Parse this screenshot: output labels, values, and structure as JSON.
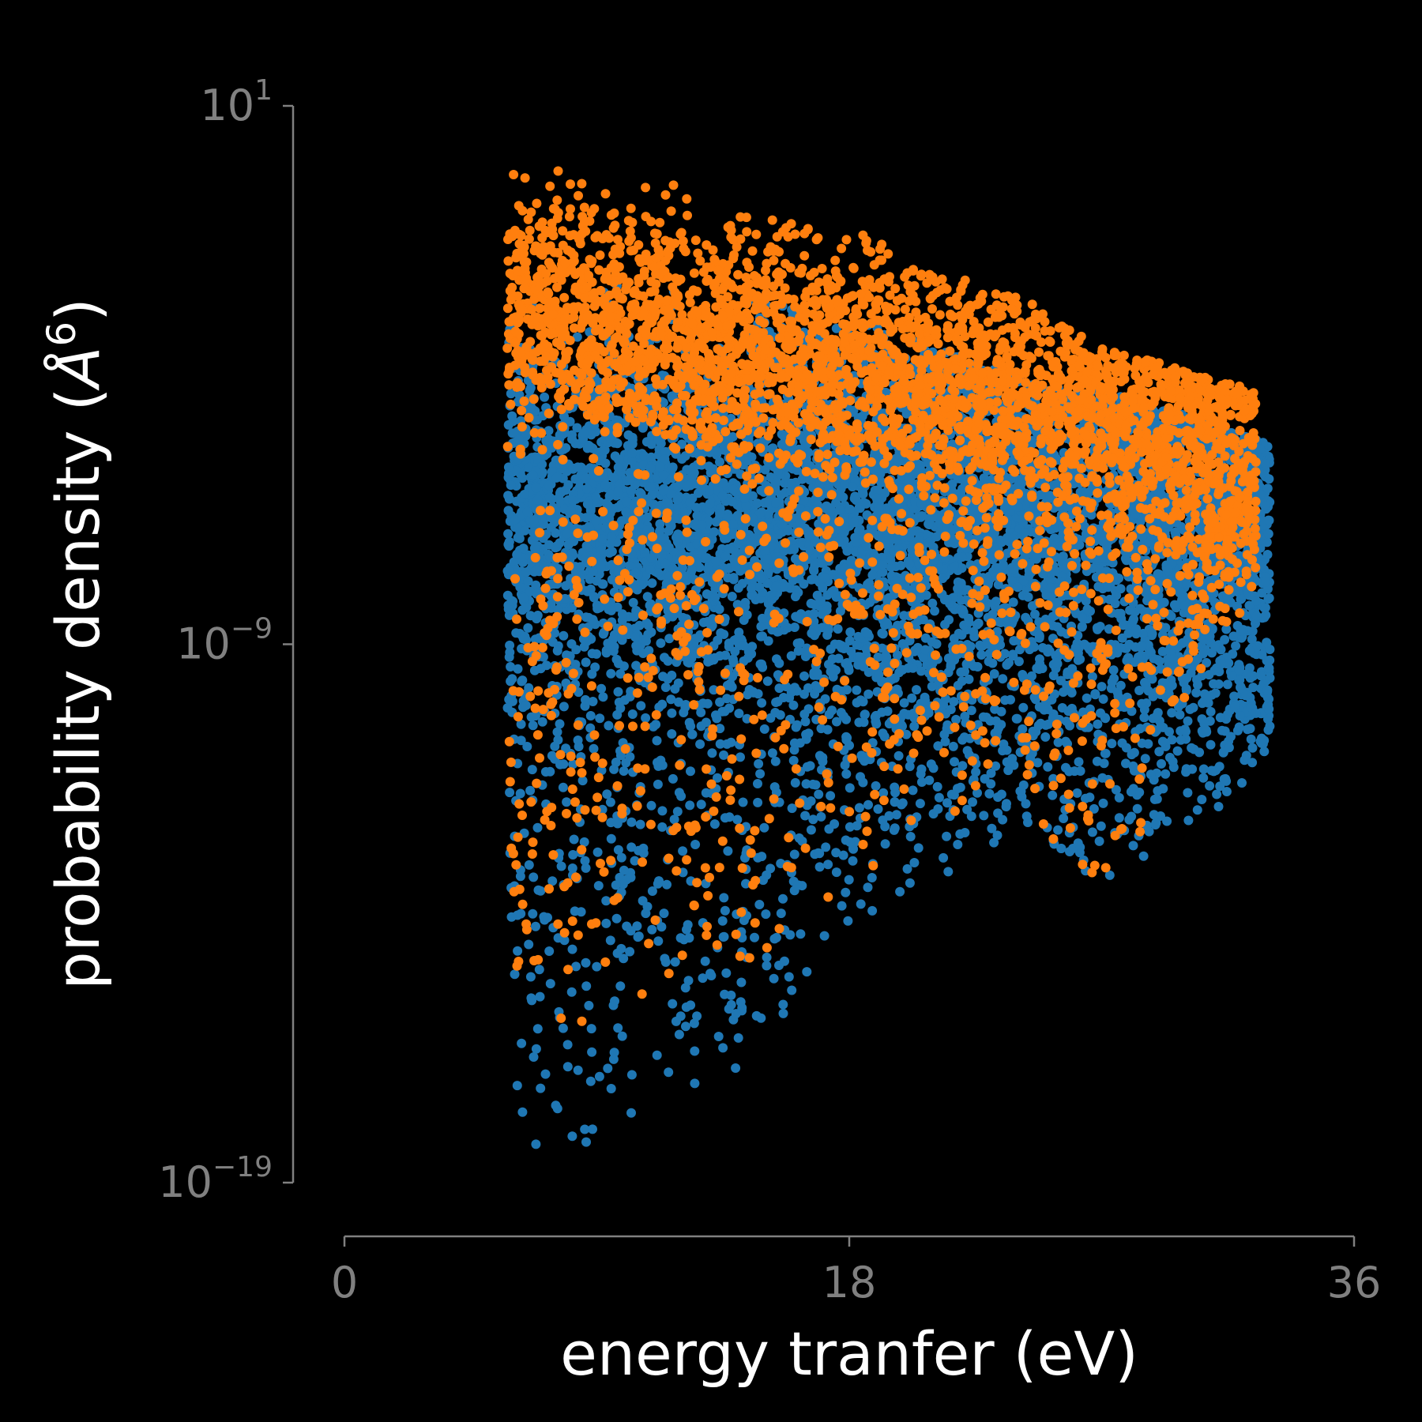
{
  "chart_data": {
    "type": "scatter",
    "title": "",
    "xlabel": "energy tranfer (eV)",
    "ylabel_prefix": "probability density (",
    "ylabel_unit": "Å",
    "ylabel_exp": "6",
    "ylabel_suffix": ")",
    "xlim": [
      0,
      36
    ],
    "x_ticks": [
      {
        "value": 0,
        "label": "0"
      },
      {
        "value": 18,
        "label": "18"
      },
      {
        "value": 36,
        "label": "36"
      }
    ],
    "yscale": "log",
    "ylim_log10": [
      -19,
      1
    ],
    "y_ticks": [
      {
        "log10": 1,
        "base": "10",
        "exp": "1"
      },
      {
        "log10": -9,
        "base": "10",
        "exp": "−9"
      },
      {
        "log10": -19,
        "base": "10",
        "exp": "−19"
      }
    ],
    "grid": false,
    "legend": "none",
    "colors": {
      "background": "#000000",
      "axis": "#808080",
      "ticklabel": "#808080",
      "label": "#ffffff"
    },
    "series": [
      {
        "color": "#1f77b4",
        "x_range": [
          5.8,
          33.0
        ],
        "log10_y_envelope": [
          {
            "x": 5.8,
            "lo": -17.8,
            "hi": -3.0
          },
          {
            "x": 7.0,
            "lo": -18.4,
            "hi": -2.5
          },
          {
            "x": 9.0,
            "lo": -18.4,
            "hi": -2.3
          },
          {
            "x": 11.0,
            "lo": -18.0,
            "hi": -2.2
          },
          {
            "x": 13.0,
            "lo": -17.5,
            "hi": -2.3
          },
          {
            "x": 15.0,
            "lo": -16.8,
            "hi": -2.6
          },
          {
            "x": 17.0,
            "lo": -15.0,
            "hi": -2.9
          },
          {
            "x": 19.0,
            "lo": -14.0,
            "hi": -3.1
          },
          {
            "x": 21.0,
            "lo": -13.5,
            "hi": -3.5
          },
          {
            "x": 24.0,
            "lo": -12.5,
            "hi": -4.0
          },
          {
            "x": 27.0,
            "lo": -13.5,
            "hi": -4.3
          },
          {
            "x": 30.0,
            "lo": -12.5,
            "hi": -4.7
          },
          {
            "x": 33.0,
            "lo": -11.5,
            "hi": -5.3
          }
        ],
        "log10_y_dense_band": [
          -9.0,
          -4.0
        ]
      },
      {
        "color": "#ff7f0e",
        "x_range": [
          5.8,
          32.5
        ],
        "log10_y_envelope": [
          {
            "x": 5.8,
            "lo": -16.0,
            "hi": 0.0
          },
          {
            "x": 7.0,
            "lo": -16.2,
            "hi": 1.0
          },
          {
            "x": 9.0,
            "lo": -16.0,
            "hi": 0.5
          },
          {
            "x": 11.0,
            "lo": -16.0,
            "hi": -0.2
          },
          {
            "x": 13.0,
            "lo": -15.5,
            "hi": -0.4
          },
          {
            "x": 15.0,
            "lo": -15.0,
            "hi": -0.7
          },
          {
            "x": 17.0,
            "lo": -14.0,
            "hi": -1.1
          },
          {
            "x": 19.0,
            "lo": -13.2,
            "hi": -1.5
          },
          {
            "x": 21.0,
            "lo": -12.5,
            "hi": -2.0
          },
          {
            "x": 24.0,
            "lo": -11.5,
            "hi": -2.5
          },
          {
            "x": 27.0,
            "lo": -14.8,
            "hi": -3.5
          },
          {
            "x": 30.0,
            "lo": -10.0,
            "hi": -3.9
          },
          {
            "x": 32.5,
            "lo": -8.0,
            "hi": -4.3
          }
        ],
        "log10_y_dense_band": [
          -6.5,
          -3.0
        ]
      }
    ]
  }
}
